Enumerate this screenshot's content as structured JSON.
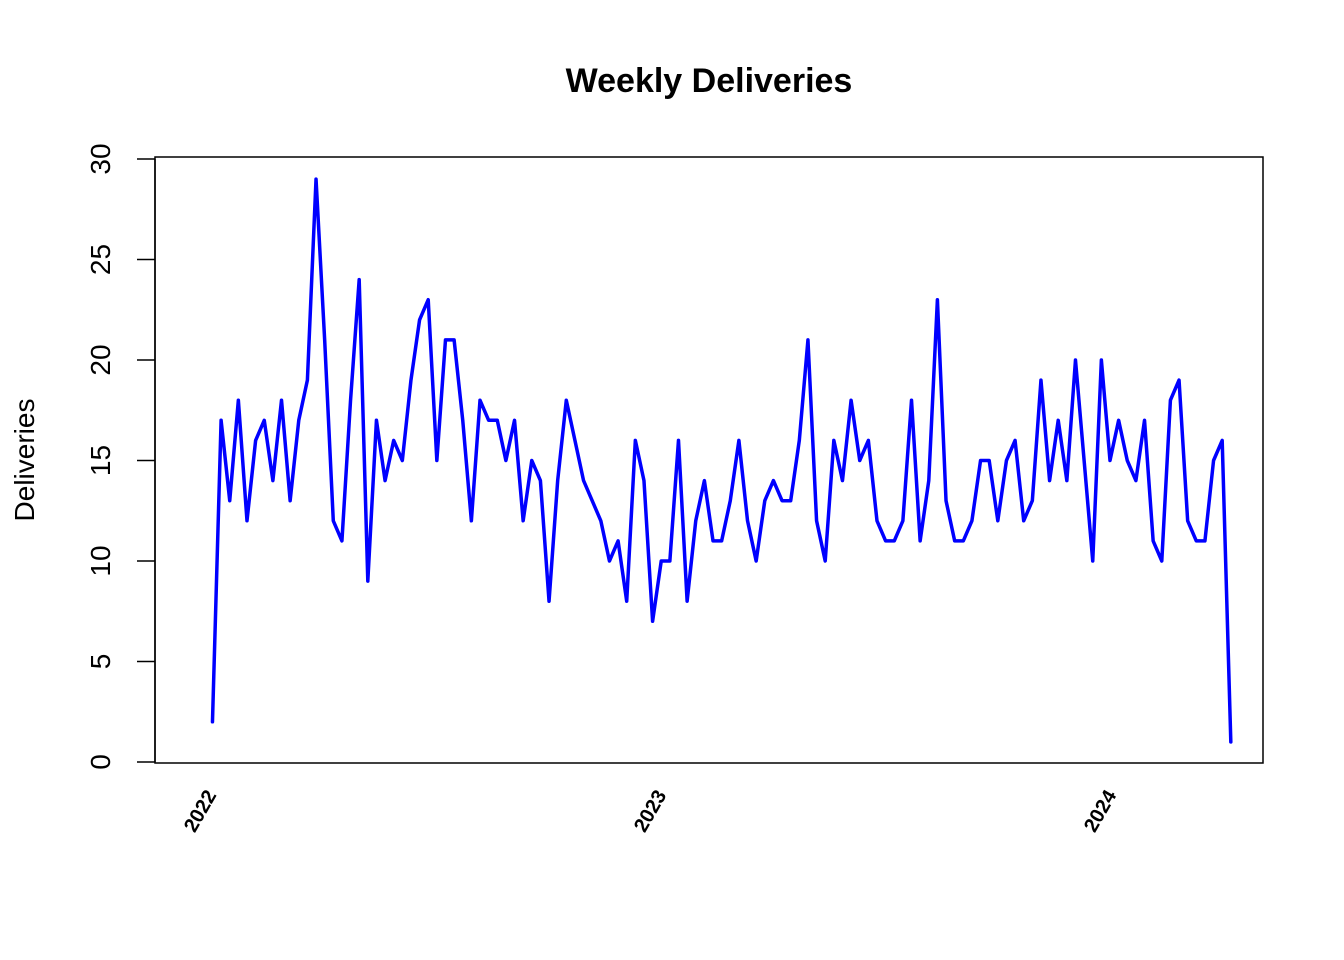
{
  "chart_data": {
    "type": "line",
    "title": "Weekly Deliveries",
    "xlabel": "",
    "ylabel": "Deliveries",
    "x_start": "2022-01-03",
    "x_interval": "1 week",
    "ylim": [
      0,
      30
    ],
    "yticks": [
      0,
      5,
      10,
      15,
      20,
      25,
      30
    ],
    "xticks": [
      "2022",
      "2023",
      "2024"
    ],
    "grid": false,
    "line_color": "#0000ff",
    "series": [
      {
        "values": [
          2,
          17,
          13,
          18,
          12,
          16,
          17,
          14,
          18,
          13,
          17,
          19,
          29,
          21,
          12,
          11,
          18,
          24,
          9,
          17,
          14,
          16,
          15,
          19,
          22,
          23,
          15,
          21,
          21,
          17,
          12,
          18,
          17,
          17,
          15,
          17,
          12,
          15,
          14,
          8,
          14,
          18,
          16,
          14,
          13,
          12,
          10,
          11,
          8,
          16,
          14,
          7,
          10,
          10,
          16,
          8,
          12,
          14,
          11,
          11,
          13,
          16,
          12,
          10,
          13,
          14,
          13,
          13,
          16,
          21,
          12,
          10,
          16,
          14,
          18,
          15,
          16,
          12,
          11,
          11,
          12,
          18,
          11,
          14,
          23,
          13,
          11,
          11,
          12,
          15,
          15,
          12,
          15,
          16,
          12,
          13,
          19,
          14,
          17,
          14,
          20,
          15,
          10,
          20,
          15,
          17,
          15,
          14,
          17,
          11,
          10,
          18,
          19,
          12,
          11,
          11,
          15,
          16,
          1
        ]
      }
    ]
  }
}
